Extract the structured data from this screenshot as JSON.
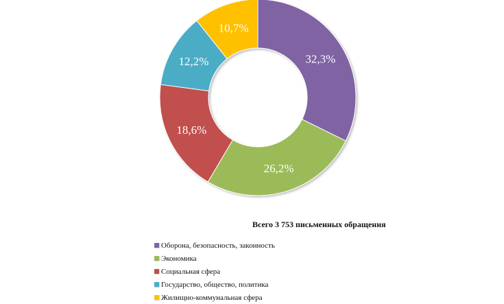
{
  "chart_data": {
    "type": "pie",
    "variant": "donut",
    "categories": [
      "Оборона, безопасность, законность",
      "Экономика",
      "Социальная сфера",
      "Государство, общество, политика",
      "Жилищно-коммунальная сфера"
    ],
    "values": [
      32.3,
      26.2,
      18.6,
      12.2,
      10.7
    ],
    "labels": [
      "32,3%",
      "26,2%",
      "18,6%",
      "12,2%",
      "10,7%"
    ],
    "colors": [
      "#8064a2",
      "#9bbb59",
      "#c0504d",
      "#4bacc6",
      "#ffc000"
    ],
    "total_caption": "Всего 3 753 письменных обращения",
    "legend_placement": "bottom"
  }
}
